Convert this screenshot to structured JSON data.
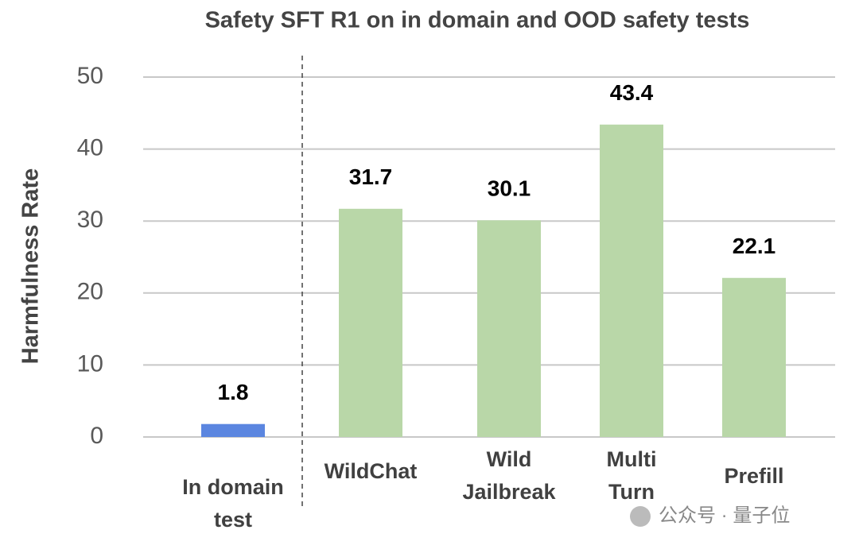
{
  "chart_data": {
    "type": "bar",
    "title": "Safety SFT R1 on in domain and OOD safety tests",
    "ylabel": "Harmfulness Rate",
    "categories": [
      [
        "In domain",
        "test"
      ],
      [
        "WildChat"
      ],
      [
        "Wild",
        "Jailbreak"
      ],
      [
        "Multi",
        "Turn"
      ],
      [
        "Prefill"
      ]
    ],
    "values": [
      1.8,
      31.7,
      30.1,
      43.4,
      22.1
    ],
    "colors": [
      "#5b86e0",
      "#b9d7a8",
      "#b9d7a8",
      "#b9d7a8",
      "#b9d7a8"
    ],
    "ylim": [
      0,
      50
    ],
    "yticks": [
      0,
      10,
      20,
      30,
      40,
      50
    ],
    "grid": true,
    "watermark": "公众号 · 量子位"
  }
}
